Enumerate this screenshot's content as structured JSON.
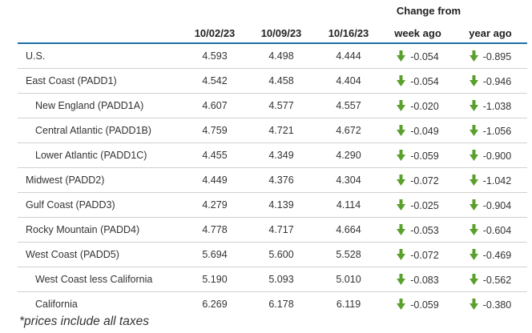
{
  "header": {
    "change_from": "Change from",
    "columns": [
      "",
      "10/02/23",
      "10/09/23",
      "10/16/23",
      "week ago",
      "year ago"
    ]
  },
  "colors": {
    "link": "#1f6fa0",
    "header_rule": "#1f6ea7",
    "down_arrow": "#5aa02c"
  },
  "rows": [
    {
      "name": "U.S.",
      "level": 0,
      "values": [
        "4.593",
        "4.498",
        "4.444"
      ],
      "week": "-0.054",
      "year": "-0.895",
      "week_dir": "down-arrow-icon",
      "year_dir": "down-arrow-icon"
    },
    {
      "name": "East Coast (PADD1)",
      "level": 0,
      "values": [
        "4.542",
        "4.458",
        "4.404"
      ],
      "week": "-0.054",
      "year": "-0.946"
    },
    {
      "name": "New England (PADD1A)",
      "level": 1,
      "values": [
        "4.607",
        "4.577",
        "4.557"
      ],
      "week": "-0.020",
      "year": "-1.038"
    },
    {
      "name": "Central Atlantic (PADD1B)",
      "level": 1,
      "values": [
        "4.759",
        "4.721",
        "4.672"
      ],
      "week": "-0.049",
      "year": "-1.056"
    },
    {
      "name": "Lower Atlantic (PADD1C)",
      "level": 1,
      "values": [
        "4.455",
        "4.349",
        "4.290"
      ],
      "week": "-0.059",
      "year": "-0.900"
    },
    {
      "name": "Midwest (PADD2)",
      "level": 0,
      "values": [
        "4.449",
        "4.376",
        "4.304"
      ],
      "week": "-0.072",
      "year": "-1.042"
    },
    {
      "name": "Gulf Coast (PADD3)",
      "level": 0,
      "values": [
        "4.279",
        "4.139",
        "4.114"
      ],
      "week": "-0.025",
      "year": "-0.904"
    },
    {
      "name": "Rocky Mountain (PADD4)",
      "level": 0,
      "values": [
        "4.778",
        "4.717",
        "4.664"
      ],
      "week": "-0.053",
      "year": "-0.604"
    },
    {
      "name": "West Coast (PADD5)",
      "level": 0,
      "values": [
        "5.694",
        "5.600",
        "5.528"
      ],
      "week": "-0.072",
      "year": "-0.469"
    },
    {
      "name": "West Coast less California",
      "level": 1,
      "values": [
        "5.190",
        "5.093",
        "5.010"
      ],
      "week": "-0.083",
      "year": "-0.562"
    },
    {
      "name": "California",
      "level": 1,
      "values": [
        "6.269",
        "6.178",
        "6.119"
      ],
      "week": "-0.059",
      "year": "-0.380"
    }
  ],
  "footnote": "*prices include all taxes"
}
